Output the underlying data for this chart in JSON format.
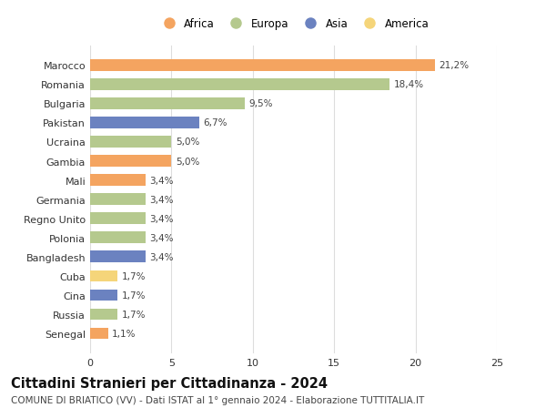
{
  "countries": [
    "Marocco",
    "Romania",
    "Bulgaria",
    "Pakistan",
    "Ucraina",
    "Gambia",
    "Mali",
    "Germania",
    "Regno Unito",
    "Polonia",
    "Bangladesh",
    "Cuba",
    "Cina",
    "Russia",
    "Senegal"
  ],
  "values": [
    21.2,
    18.4,
    9.5,
    6.7,
    5.0,
    5.0,
    3.4,
    3.4,
    3.4,
    3.4,
    3.4,
    1.7,
    1.7,
    1.7,
    1.1
  ],
  "labels": [
    "21,2%",
    "18,4%",
    "9,5%",
    "6,7%",
    "5,0%",
    "5,0%",
    "3,4%",
    "3,4%",
    "3,4%",
    "3,4%",
    "3,4%",
    "1,7%",
    "1,7%",
    "1,7%",
    "1,1%"
  ],
  "continents": [
    "Africa",
    "Europa",
    "Europa",
    "Asia",
    "Europa",
    "Africa",
    "Africa",
    "Europa",
    "Europa",
    "Europa",
    "Asia",
    "America",
    "Asia",
    "Europa",
    "Africa"
  ],
  "continent_colors": {
    "Africa": "#F4A460",
    "Europa": "#B5C98E",
    "Asia": "#6B82C0",
    "America": "#F5D57A"
  },
  "legend_order": [
    "Africa",
    "Europa",
    "Asia",
    "America"
  ],
  "title": "Cittadini Stranieri per Cittadinanza - 2024",
  "subtitle": "COMUNE DI BRIATICO (VV) - Dati ISTAT al 1° gennaio 2024 - Elaborazione TUTTITALIA.IT",
  "xlim": [
    0,
    25
  ],
  "xticks": [
    0,
    5,
    10,
    15,
    20,
    25
  ],
  "background_color": "#ffffff",
  "grid_color": "#dddddd",
  "bar_height": 0.6,
  "title_fontsize": 10.5,
  "subtitle_fontsize": 7.5,
  "label_fontsize": 7.5,
  "tick_fontsize": 8,
  "legend_fontsize": 8.5
}
